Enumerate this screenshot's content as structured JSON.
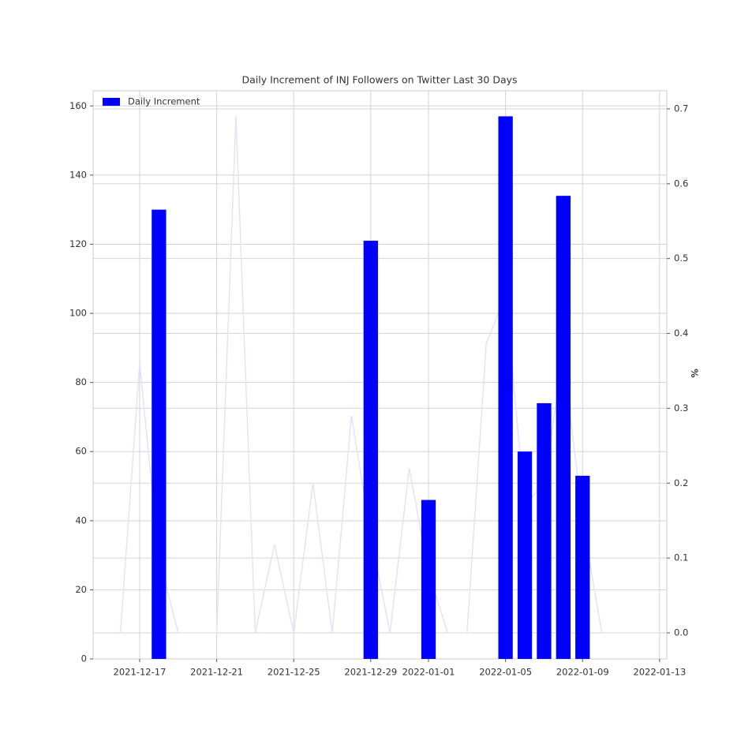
{
  "chart_data": {
    "type": "bar",
    "title": "Daily Increment of INJ Followers on Twitter Last 30 Days",
    "y2label": "%",
    "x": [
      "2021-12-16",
      "2021-12-17",
      "2021-12-18",
      "2021-12-19",
      "2021-12-20",
      "2021-12-21",
      "2021-12-22",
      "2021-12-23",
      "2021-12-24",
      "2021-12-25",
      "2021-12-26",
      "2021-12-27",
      "2021-12-28",
      "2021-12-29",
      "2021-12-30",
      "2021-12-31",
      "2022-01-01",
      "2022-01-02",
      "2022-01-03",
      "2022-01-04",
      "2022-01-05",
      "2022-01-06",
      "2022-01-07",
      "2022-01-08",
      "2022-01-09",
      "2022-01-10",
      "2022-01-11",
      "2022-01-12",
      "2022-01-13"
    ],
    "series": [
      {
        "name": "Daily Increment",
        "type": "bar",
        "color": "#0000ff",
        "values": [
          0,
          0,
          130,
          0,
          0,
          0,
          0,
          0,
          0,
          0,
          0,
          0,
          0,
          121,
          0,
          0,
          46,
          0,
          0,
          0,
          157,
          60,
          74,
          134,
          53,
          0,
          0,
          0,
          0
        ]
      },
      {
        "type": "line",
        "axis": "y2",
        "color": "#e3e3f7",
        "values": [
          0,
          0.36,
          0.1,
          0,
          0,
          0,
          0.69,
          0,
          0.118,
          0,
          0.2,
          0,
          0.29,
          0.13,
          0,
          0.22,
          0.08,
          0,
          0,
          0.387,
          0.45,
          0.17,
          0.2,
          0.37,
          0.15,
          0,
          0,
          0,
          0
        ]
      }
    ],
    "xlim": [
      "2021-12-14T14:00:00Z",
      "2022-01-13T09:00:00Z"
    ],
    "xticks": [
      "2021-12-17",
      "2021-12-21",
      "2021-12-25",
      "2021-12-29",
      "2022-01-01",
      "2022-01-05",
      "2022-01-09",
      "2022-01-13"
    ],
    "ylim": [
      0,
      164.4
    ],
    "yticks": [
      0,
      20,
      40,
      60,
      80,
      100,
      120,
      140,
      160
    ],
    "y2lim": [
      -0.0348,
      0.7242
    ],
    "y2ticks": [
      {
        "value": 0,
        "label": "0.0"
      },
      0.1,
      0.2,
      0.3,
      0.4,
      0.5,
      0.6,
      0.7
    ],
    "grid": true,
    "legend": "upper left"
  }
}
